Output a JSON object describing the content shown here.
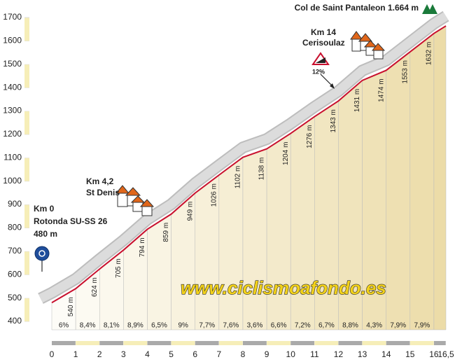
{
  "chart_data": {
    "type": "profile",
    "x": [
      0,
      1,
      2,
      3,
      4,
      5,
      6,
      7,
      8,
      9,
      10,
      11,
      12,
      13,
      14,
      15,
      16,
      16.5
    ],
    "values": [
      480,
      540,
      624,
      705,
      794,
      859,
      949,
      1026,
      1102,
      1138,
      1204,
      1276,
      1343,
      1431,
      1474,
      1553,
      1632,
      1664
    ],
    "value_labels": [
      "480 m",
      "540 m",
      "624 m",
      "705 m",
      "794 m",
      "859 m",
      "949 m",
      "1026 m",
      "1102 m",
      "1138 m",
      "1204 m",
      "1276 m",
      "1343 m",
      "1431 m",
      "1474 m",
      "1553 m",
      "1632 m",
      null
    ],
    "color": "#c8102e",
    "gradient_labels": [
      "6%",
      "8,4%",
      "8,1%",
      "8,9%",
      "6,5%",
      "9%",
      "7,7%",
      "7,6%",
      "3,6%",
      "6,6%",
      "7,2%",
      "6,7%",
      "8,8%",
      "4,3%",
      "7,9%",
      "7,9%"
    ],
    "xlim": [
      0,
      16.5
    ],
    "xticks": [
      0,
      1,
      2,
      3,
      4,
      5,
      6,
      7,
      8,
      9,
      10,
      11,
      12,
      13,
      14,
      15,
      16,
      {
        "value": 16.5,
        "label": "16,5"
      }
    ],
    "ylim": [
      400,
      1700
    ],
    "yticks": [
      400,
      500,
      600,
      700,
      800,
      900,
      1000,
      1100,
      1200,
      1300,
      1400,
      1500,
      1600,
      1700
    ],
    "annotations": {
      "start": [
        "Km 0",
        "Rotonda SU-SS 26"
      ],
      "summit": "Col de Saint Pantaleon 1.664 m",
      "st_denis": [
        "Km 4,2",
        "St Denis"
      ],
      "cerisoulaz": [
        "Km 14",
        "Cerisoulaz"
      ],
      "ramp": "12%",
      "watermark": "www.ciclismoafondo.es"
    }
  }
}
